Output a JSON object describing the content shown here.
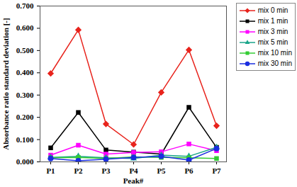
{
  "chart_data": {
    "type": "line",
    "x_label": "Peak#",
    "y_label": "Absorbance ratio standard deviation [-]",
    "categories": [
      "P1",
      "P2",
      "P3",
      "P4",
      "P5",
      "P6",
      "P7"
    ],
    "ylim": [
      0,
      0.7
    ],
    "yticks": [
      {
        "value": 0,
        "label": "0.000"
      },
      {
        "value": 0.1,
        "label": "0.100"
      },
      {
        "value": 0.2,
        "label": "0.200"
      },
      {
        "value": 0.3,
        "label": "0.300"
      },
      {
        "value": 0.4,
        "label": "0.400"
      },
      {
        "value": 0.5,
        "label": "0.500"
      },
      {
        "value": 0.6,
        "label": "0.600"
      },
      {
        "value": 0.7,
        "label": "0.700"
      }
    ],
    "grid": false,
    "legend": "top-right",
    "series": [
      {
        "name": "mix 0 min",
        "color": "#e8231c",
        "marker": "diamond",
        "values": [
          0.397,
          0.593,
          0.17,
          0.078,
          0.312,
          0.503,
          0.162
        ]
      },
      {
        "name": "mix 1 min",
        "color": "#000000",
        "marker": "square",
        "values": [
          0.063,
          0.222,
          0.053,
          0.044,
          0.035,
          0.245,
          0.065
        ]
      },
      {
        "name": "mix 3 min",
        "color": "#ff00ff",
        "marker": "square",
        "values": [
          0.03,
          0.075,
          0.035,
          0.042,
          0.045,
          0.08,
          0.05
        ]
      },
      {
        "name": "mix 5 min",
        "color": "#1aa58a",
        "marker": "triangle",
        "values": [
          0.02,
          0.025,
          0.018,
          0.015,
          0.03,
          0.025,
          0.065
        ]
      },
      {
        "name": "mix 10 min",
        "color": "#33cc33",
        "marker": "square",
        "values": [
          0.018,
          0.02,
          0.015,
          0.022,
          0.02,
          0.018,
          0.015
        ]
      },
      {
        "name": "mix 30 min",
        "color": "#1a2ee0",
        "marker": "circle",
        "values": [
          0.015,
          0.005,
          0.012,
          0.02,
          0.025,
          0.008,
          0.06
        ]
      }
    ]
  }
}
